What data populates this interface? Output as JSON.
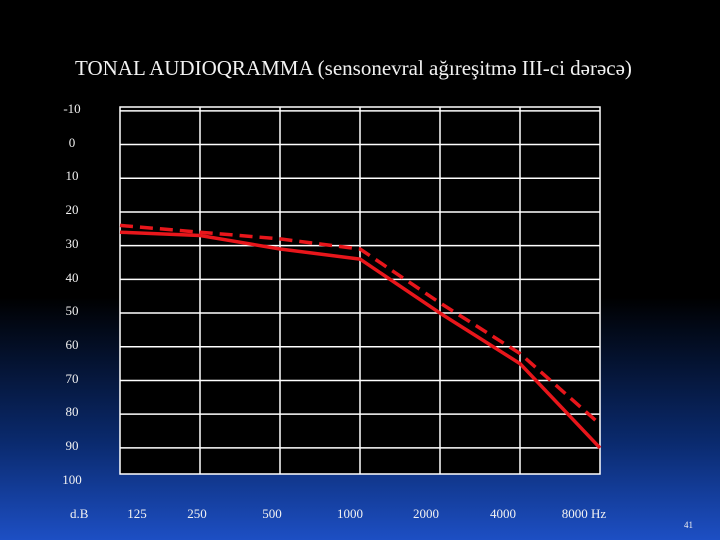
{
  "slide": {
    "title": "TONAL AUDIOQRAMMA (sensonevral ağıreşitmə III-ci dərəcə)",
    "y_unit": "d.B",
    "page_number": "41"
  },
  "chart_data": {
    "type": "line",
    "title": "TONAL AUDIOQRAMMA (sensonevral ağıreşitmə III-ci dərəcə)",
    "xlabel": "",
    "ylabel": "d.B",
    "x_tick_labels": [
      "125",
      "250",
      "500",
      "1000",
      "2000",
      "4000",
      "8000 Hz"
    ],
    "y_tick_labels": [
      "-10",
      "0",
      "10",
      "20",
      "30",
      "40",
      "50",
      "60",
      "70",
      "80",
      "90",
      "100"
    ],
    "y_ticks": [
      -10,
      0,
      10,
      20,
      30,
      40,
      50,
      60,
      70,
      80,
      90,
      100
    ],
    "ylim": [
      -10,
      100
    ],
    "y_inverted": true,
    "grid": true,
    "series": [
      {
        "style": "solid",
        "color": "#e8161b",
        "x": [
          "125",
          "250",
          "500",
          "1000",
          "2000",
          "4000",
          "8000"
        ],
        "y": [
          31,
          32,
          36,
          39,
          55,
          70,
          95
        ]
      },
      {
        "style": "dashed",
        "color": "#e8161b",
        "x": [
          "125",
          "250",
          "500",
          "1000",
          "2000",
          "4000",
          "8000"
        ],
        "y": [
          29,
          31,
          33,
          36,
          52,
          67,
          88
        ]
      }
    ]
  }
}
